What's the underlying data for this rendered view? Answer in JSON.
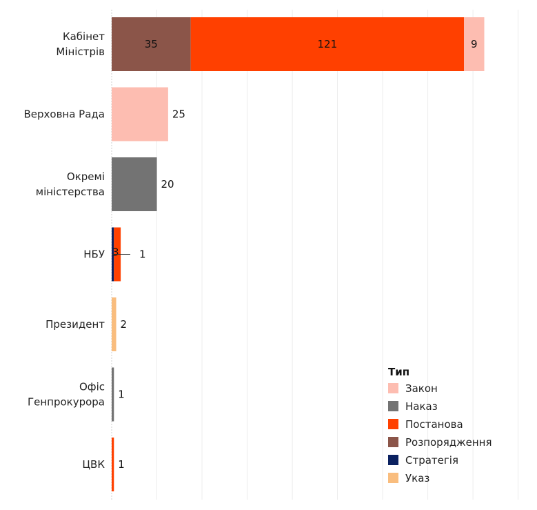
{
  "chart_data": {
    "type": "bar",
    "orientation": "horizontal",
    "stacked": true,
    "categories": [
      [
        "Кабінет",
        "Міністрів"
      ],
      [
        "Верховна Рада"
      ],
      [
        "Окремі",
        "міністерства"
      ],
      [
        "НБУ"
      ],
      [
        "Президент"
      ],
      [
        "Офіс",
        "Генпрокурора"
      ],
      [
        "ЦВК"
      ]
    ],
    "series": [
      {
        "name": "Розпорядження",
        "color": "#8B5549",
        "values": [
          35,
          0,
          0,
          0,
          0,
          0,
          0
        ]
      },
      {
        "name": "Стратегія",
        "color": "#0B2160",
        "values": [
          0,
          0,
          0,
          1,
          0,
          0,
          0
        ]
      },
      {
        "name": "Постанова",
        "color": "#FF4000",
        "values": [
          121,
          0,
          0,
          3,
          0,
          0,
          1
        ]
      },
      {
        "name": "Закон",
        "color": "#FDBDB1",
        "values": [
          9,
          25,
          0,
          0,
          0,
          0,
          0
        ]
      },
      {
        "name": "Наказ",
        "color": "#737373",
        "values": [
          0,
          0,
          20,
          0,
          0,
          1,
          0
        ]
      },
      {
        "name": "Указ",
        "color": "#F9BD7E",
        "values": [
          0,
          0,
          0,
          0,
          2,
          0,
          0
        ]
      }
    ],
    "xlim": [
      0,
      185
    ],
    "grid": true,
    "legend": {
      "title": "Тип",
      "placement": "bottom-right",
      "order": [
        "Закон",
        "Наказ",
        "Постанова",
        "Розпорядження",
        "Стратегія",
        "Указ"
      ]
    }
  }
}
